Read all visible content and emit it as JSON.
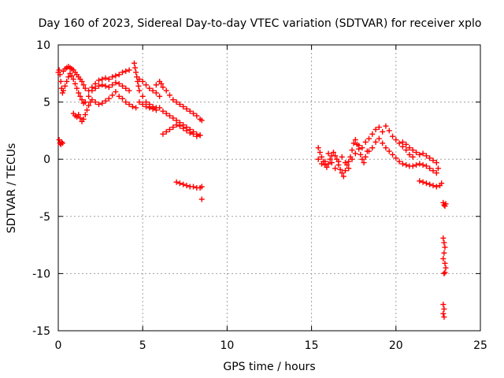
{
  "chart_data": {
    "type": "scatter",
    "title": "Day 160 of 2023, Sidereal Day-to-day VTEC variation (SDTVAR) for receiver xplo",
    "xlabel": "GPS time / hours",
    "ylabel": "SDTVAR / TECUs",
    "xlim": [
      0,
      25
    ],
    "ylim": [
      -15,
      10
    ],
    "xticks": [
      0,
      5,
      10,
      15,
      20,
      25
    ],
    "xtick_labels": [
      "0",
      "5",
      "10",
      "15",
      "20",
      "25"
    ],
    "yticks": [
      10,
      5,
      0,
      -5,
      -10,
      -15
    ],
    "ytick_labels": [
      "10",
      "5",
      "0",
      "-5",
      "-10",
      "-15"
    ],
    "grid": true,
    "marker": "+",
    "color": "#ff0000",
    "series": [
      {
        "name": "SDTVAR",
        "points": [
          [
            0.05,
            1.7
          ],
          [
            0.1,
            1.4
          ],
          [
            0.15,
            1.3
          ],
          [
            0.2,
            1.5
          ],
          [
            0.25,
            1.4
          ],
          [
            0.0,
            7.6
          ],
          [
            0.05,
            7.8
          ],
          [
            0.1,
            7.4
          ],
          [
            0.15,
            6.8
          ],
          [
            0.2,
            6.2
          ],
          [
            0.25,
            5.8
          ],
          [
            0.3,
            7.7
          ],
          [
            0.4,
            7.9
          ],
          [
            0.5,
            8.0
          ],
          [
            0.6,
            8.1
          ],
          [
            0.7,
            8.0
          ],
          [
            0.8,
            7.9
          ],
          [
            0.9,
            7.8
          ],
          [
            1.0,
            7.6
          ],
          [
            1.1,
            7.4
          ],
          [
            1.2,
            7.2
          ],
          [
            1.3,
            7.0
          ],
          [
            1.4,
            6.8
          ],
          [
            1.5,
            6.5
          ],
          [
            0.3,
            6.0
          ],
          [
            0.4,
            6.4
          ],
          [
            0.5,
            6.8
          ],
          [
            0.6,
            7.2
          ],
          [
            0.7,
            7.5
          ],
          [
            0.8,
            7.3
          ],
          [
            0.9,
            7.0
          ],
          [
            1.0,
            6.6
          ],
          [
            1.1,
            6.2
          ],
          [
            1.2,
            5.8
          ],
          [
            1.3,
            5.5
          ],
          [
            1.4,
            5.2
          ],
          [
            1.5,
            4.9
          ],
          [
            0.9,
            4.0
          ],
          [
            1.0,
            3.8
          ],
          [
            1.1,
            3.7
          ],
          [
            1.2,
            3.9
          ],
          [
            1.3,
            3.6
          ],
          [
            1.4,
            3.3
          ],
          [
            1.5,
            3.5
          ],
          [
            1.6,
            3.9
          ],
          [
            1.7,
            4.3
          ],
          [
            1.8,
            4.7
          ],
          [
            1.9,
            5.0
          ],
          [
            2.0,
            5.2
          ],
          [
            2.2,
            5.0
          ],
          [
            2.4,
            4.8
          ],
          [
            2.6,
            4.9
          ],
          [
            2.8,
            5.1
          ],
          [
            3.0,
            5.3
          ],
          [
            3.2,
            5.6
          ],
          [
            3.4,
            5.9
          ],
          [
            1.6,
            6.2
          ],
          [
            1.8,
            6.0
          ],
          [
            2.0,
            6.3
          ],
          [
            2.2,
            6.6
          ],
          [
            2.4,
            6.9
          ],
          [
            2.6,
            7.0
          ],
          [
            2.8,
            7.1
          ],
          [
            3.0,
            7.0
          ],
          [
            3.2,
            7.2
          ],
          [
            3.4,
            7.3
          ],
          [
            3.6,
            7.4
          ],
          [
            3.8,
            7.6
          ],
          [
            4.0,
            7.7
          ],
          [
            4.2,
            7.8
          ],
          [
            1.6,
            5.0
          ],
          [
            1.8,
            5.5
          ],
          [
            2.0,
            6.0
          ],
          [
            2.2,
            6.2
          ],
          [
            2.4,
            6.4
          ],
          [
            2.6,
            6.5
          ],
          [
            2.8,
            6.4
          ],
          [
            3.0,
            6.3
          ],
          [
            3.2,
            6.5
          ],
          [
            3.4,
            6.7
          ],
          [
            3.6,
            6.6
          ],
          [
            3.8,
            6.4
          ],
          [
            4.0,
            6.2
          ],
          [
            4.2,
            6.0
          ],
          [
            3.6,
            5.5
          ],
          [
            3.8,
            5.3
          ],
          [
            4.0,
            5.0
          ],
          [
            4.2,
            4.8
          ],
          [
            4.4,
            4.6
          ],
          [
            4.6,
            4.5
          ],
          [
            4.5,
            8.4
          ],
          [
            4.55,
            8.0
          ],
          [
            4.6,
            7.6
          ],
          [
            4.65,
            7.2
          ],
          [
            4.7,
            6.8
          ],
          [
            4.75,
            6.4
          ],
          [
            4.8,
            7.0
          ],
          [
            5.0,
            6.8
          ],
          [
            5.2,
            6.5
          ],
          [
            5.4,
            6.2
          ],
          [
            5.6,
            6.0
          ],
          [
            5.8,
            5.8
          ],
          [
            6.0,
            5.5
          ],
          [
            4.8,
            6.0
          ],
          [
            5.0,
            5.5
          ],
          [
            5.2,
            5.0
          ],
          [
            5.4,
            4.8
          ],
          [
            5.6,
            4.6
          ],
          [
            5.8,
            4.5
          ],
          [
            4.8,
            5.0
          ],
          [
            5.0,
            4.8
          ],
          [
            5.2,
            4.6
          ],
          [
            5.4,
            4.5
          ],
          [
            5.6,
            4.4
          ],
          [
            5.8,
            4.3
          ],
          [
            5.8,
            6.5
          ],
          [
            6.0,
            6.8
          ],
          [
            6.1,
            6.6
          ],
          [
            6.2,
            6.3
          ],
          [
            6.4,
            6.0
          ],
          [
            6.6,
            5.6
          ],
          [
            6.8,
            5.2
          ],
          [
            7.0,
            5.0
          ],
          [
            7.2,
            4.8
          ],
          [
            7.4,
            4.6
          ],
          [
            7.6,
            4.4
          ],
          [
            7.8,
            4.2
          ],
          [
            8.0,
            4.0
          ],
          [
            8.2,
            3.8
          ],
          [
            8.4,
            3.5
          ],
          [
            8.5,
            3.4
          ],
          [
            6.0,
            4.5
          ],
          [
            6.2,
            4.2
          ],
          [
            6.4,
            4.0
          ],
          [
            6.6,
            3.8
          ],
          [
            6.8,
            3.6
          ],
          [
            7.0,
            3.4
          ],
          [
            7.2,
            3.2
          ],
          [
            7.4,
            3.0
          ],
          [
            7.6,
            2.8
          ],
          [
            7.8,
            2.6
          ],
          [
            8.0,
            2.4
          ],
          [
            8.2,
            2.2
          ],
          [
            8.4,
            2.1
          ],
          [
            6.2,
            2.2
          ],
          [
            6.4,
            2.4
          ],
          [
            6.6,
            2.6
          ],
          [
            6.8,
            2.8
          ],
          [
            7.0,
            3.0
          ],
          [
            7.2,
            2.9
          ],
          [
            7.4,
            2.7
          ],
          [
            7.6,
            2.5
          ],
          [
            7.8,
            2.3
          ],
          [
            8.0,
            2.2
          ],
          [
            8.2,
            2.0
          ],
          [
            8.4,
            2.1
          ],
          [
            7.0,
            -2.0
          ],
          [
            7.2,
            -2.1
          ],
          [
            7.4,
            -2.2
          ],
          [
            7.6,
            -2.3
          ],
          [
            7.8,
            -2.4
          ],
          [
            8.0,
            -2.4
          ],
          [
            8.2,
            -2.5
          ],
          [
            8.4,
            -2.5
          ],
          [
            8.5,
            -2.4
          ],
          [
            8.5,
            -3.5
          ],
          [
            15.4,
            1.0
          ],
          [
            15.5,
            0.6
          ],
          [
            15.6,
            0.2
          ],
          [
            15.7,
            -0.2
          ],
          [
            15.8,
            -0.5
          ],
          [
            15.9,
            -0.7
          ],
          [
            16.0,
            -0.4
          ],
          [
            16.1,
            0.0
          ],
          [
            16.2,
            0.3
          ],
          [
            16.3,
            0.6
          ],
          [
            16.4,
            0.3
          ],
          [
            16.5,
            0.0
          ],
          [
            16.6,
            -0.5
          ],
          [
            16.7,
            -0.9
          ],
          [
            16.8,
            -1.2
          ],
          [
            16.9,
            -1.5
          ],
          [
            17.0,
            -1.0
          ],
          [
            17.1,
            -0.5
          ],
          [
            17.2,
            -0.2
          ],
          [
            17.3,
            0.2
          ],
          [
            17.4,
            0.8
          ],
          [
            17.5,
            1.4
          ],
          [
            17.6,
            1.7
          ],
          [
            17.7,
            1.3
          ],
          [
            17.8,
            0.9
          ],
          [
            17.9,
            0.4
          ],
          [
            18.0,
            0.0
          ],
          [
            18.1,
            -0.3
          ],
          [
            18.2,
            0.2
          ],
          [
            18.3,
            0.7
          ],
          [
            15.4,
            0.0
          ],
          [
            15.6,
            -0.4
          ],
          [
            15.8,
            -0.2
          ],
          [
            16.0,
            0.5
          ],
          [
            16.2,
            -0.3
          ],
          [
            16.4,
            -0.8
          ],
          [
            16.6,
            -0.2
          ],
          [
            16.8,
            0.2
          ],
          [
            17.0,
            -0.3
          ],
          [
            17.2,
            -0.8
          ],
          [
            17.4,
            0.0
          ],
          [
            17.6,
            0.5
          ],
          [
            17.8,
            1.2
          ],
          [
            18.0,
            1.0
          ],
          [
            18.2,
            1.5
          ],
          [
            18.4,
            1.8
          ],
          [
            18.6,
            2.2
          ],
          [
            18.8,
            2.6
          ],
          [
            19.0,
            2.8
          ],
          [
            19.2,
            2.4
          ],
          [
            19.4,
            2.9
          ],
          [
            19.6,
            2.5
          ],
          [
            19.8,
            2.0
          ],
          [
            20.0,
            1.7
          ],
          [
            20.2,
            1.4
          ],
          [
            20.4,
            1.1
          ],
          [
            20.6,
            0.8
          ],
          [
            20.8,
            0.4
          ],
          [
            21.0,
            0.2
          ],
          [
            18.4,
            0.7
          ],
          [
            18.6,
            1.0
          ],
          [
            18.8,
            1.5
          ],
          [
            19.0,
            1.8
          ],
          [
            19.2,
            1.4
          ],
          [
            19.4,
            1.0
          ],
          [
            19.6,
            0.7
          ],
          [
            19.8,
            0.4
          ],
          [
            20.0,
            0.1
          ],
          [
            20.2,
            -0.2
          ],
          [
            20.4,
            -0.4
          ],
          [
            20.6,
            -0.5
          ],
          [
            20.8,
            -0.6
          ],
          [
            21.0,
            -0.6
          ],
          [
            21.2,
            -0.5
          ],
          [
            21.4,
            -0.4
          ],
          [
            21.6,
            -0.5
          ],
          [
            21.8,
            -0.6
          ],
          [
            22.0,
            -0.8
          ],
          [
            22.2,
            -1.0
          ],
          [
            22.4,
            -1.2
          ],
          [
            20.4,
            1.5
          ],
          [
            20.6,
            1.3
          ],
          [
            20.8,
            1.0
          ],
          [
            21.0,
            0.8
          ],
          [
            21.2,
            0.6
          ],
          [
            21.4,
            0.4
          ],
          [
            21.6,
            0.5
          ],
          [
            21.8,
            0.3
          ],
          [
            22.0,
            0.1
          ],
          [
            22.2,
            -0.1
          ],
          [
            22.4,
            -0.3
          ],
          [
            22.5,
            -0.8
          ],
          [
            21.4,
            -1.9
          ],
          [
            21.6,
            -2.0
          ],
          [
            21.8,
            -2.1
          ],
          [
            22.0,
            -2.2
          ],
          [
            22.2,
            -2.3
          ],
          [
            22.4,
            -2.4
          ],
          [
            22.6,
            -2.3
          ],
          [
            22.7,
            -2.1
          ],
          [
            22.8,
            -3.8
          ],
          [
            22.85,
            -4.0
          ],
          [
            22.9,
            -4.1
          ],
          [
            22.95,
            -3.9
          ],
          [
            22.8,
            -6.9
          ],
          [
            22.85,
            -7.3
          ],
          [
            22.9,
            -7.7
          ],
          [
            22.85,
            -8.2
          ],
          [
            22.8,
            -8.7
          ],
          [
            22.9,
            -9.1
          ],
          [
            22.95,
            -9.5
          ],
          [
            22.9,
            -9.9
          ],
          [
            22.85,
            -10.0
          ],
          [
            22.8,
            -12.7
          ],
          [
            22.85,
            -13.1
          ],
          [
            22.8,
            -13.5
          ],
          [
            22.85,
            -13.8
          ]
        ]
      }
    ]
  }
}
